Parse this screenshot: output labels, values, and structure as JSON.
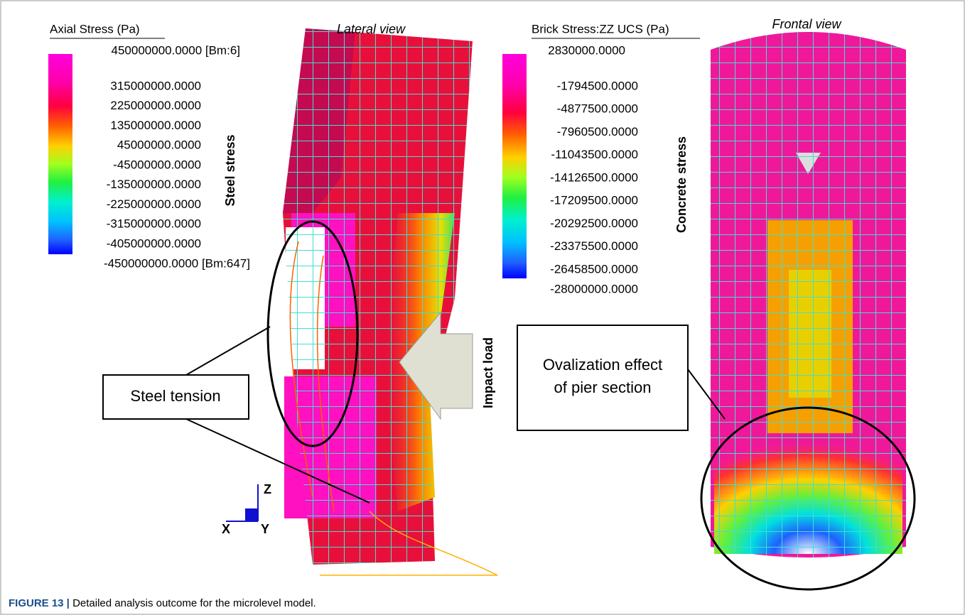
{
  "left_legend": {
    "title": "Axial Stress (Pa)",
    "side_label": "Steel stress",
    "labels": [
      "450000000.0000 [Bm:6]",
      "315000000.0000",
      "225000000.0000",
      "135000000.0000",
      "45000000.0000",
      "-45000000.0000",
      "-135000000.0000",
      "-225000000.0000",
      "-315000000.0000",
      "-405000000.0000",
      "-450000000.0000 [Bm:647]"
    ]
  },
  "right_legend": {
    "title": "Brick Stress:ZZ UCS (Pa)",
    "side_label": "Concrete stress",
    "labels": [
      "2830000.0000",
      "-1794500.0000",
      "-4877500.0000",
      "-7960500.0000",
      "-11043500.0000",
      "-14126500.0000",
      "-17209500.0000",
      "-20292500.0000",
      "-23375500.0000",
      "-26458500.0000",
      "-28000000.0000"
    ]
  },
  "views": [
    "Lateral view",
    "Frontal view"
  ],
  "callouts": {
    "steel_tension": "Steel tension",
    "impact_load": "Impact load",
    "ovalization": [
      "Ovalization effect",
      "of pier section"
    ]
  },
  "triad": [
    "Z",
    "X",
    "Y"
  ],
  "caption": {
    "label": "FIGURE 13 |",
    "text": "Detailed analysis outcome for the microlevel model."
  }
}
